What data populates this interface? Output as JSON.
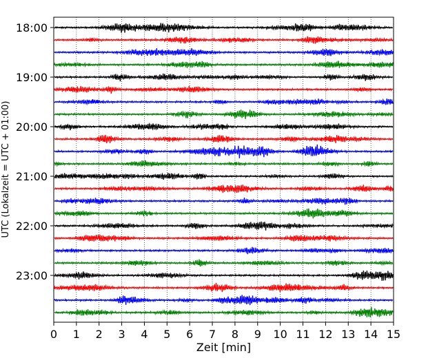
{
  "chart_data": {
    "type": "line",
    "title": "",
    "xlabel": "Zeit  [min]",
    "ylabel": "UTC (Lokalzeit = UTC + 01:00)",
    "xlim": [
      0,
      15
    ],
    "x_ticks": [
      0,
      1,
      2,
      3,
      4,
      5,
      6,
      7,
      8,
      9,
      10,
      11,
      12,
      13,
      14,
      15
    ],
    "y_ticks": [
      "18:00",
      "19:00",
      "20:00",
      "21:00",
      "22:00",
      "23:00"
    ],
    "grid": "vertical dotted lines at each minute",
    "trace_colors": [
      "#000000",
      "#ff0000",
      "#0000ff",
      "#008000"
    ],
    "trace_interval_min": 15,
    "trace_count": 24,
    "start_time": "18:00",
    "end_time": "23:45"
  }
}
